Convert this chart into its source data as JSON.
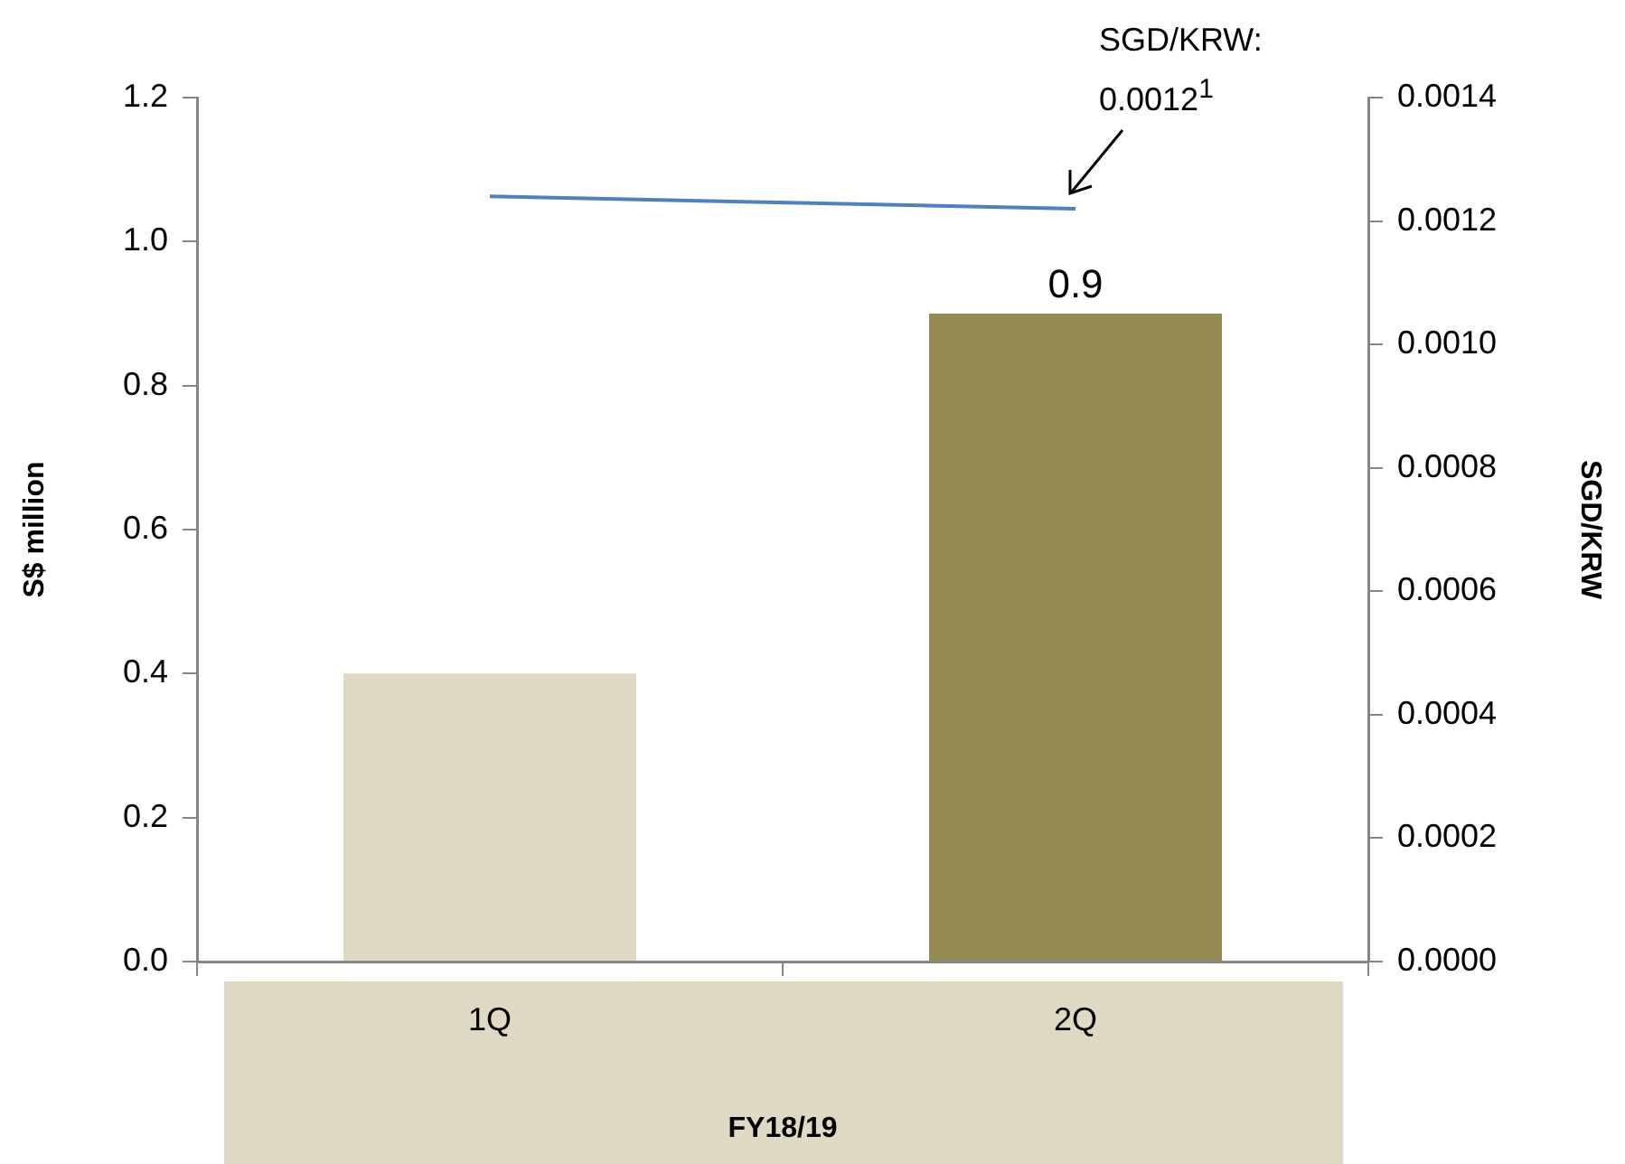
{
  "chart_data": {
    "type": "bar",
    "categories": [
      "1Q",
      "2Q"
    ],
    "xlabel": "FY18/19",
    "ylabel": "S$ million",
    "y2label": "SGD/KRW",
    "series": [
      {
        "colors": [
          "#ddd9c3",
          "#948a54"
        ],
        "values": [
          0.4,
          0.9
        ],
        "value_labels": [
          null,
          "0.9"
        ]
      },
      {
        "type": "line",
        "axis": "y2",
        "color": "#4f81bd",
        "values": [
          0.00124,
          0.00122
        ]
      }
    ],
    "ylim": [
      0,
      1.2
    ],
    "yticks": [
      {
        "value": 0,
        "label": "0.0"
      },
      0.2,
      0.4,
      0.6,
      0.8,
      {
        "value": 1,
        "label": "1.0"
      },
      1.2
    ],
    "y2lim": [
      0,
      0.0014
    ],
    "y2ticks": [
      {
        "value": 0,
        "label": "0.0000"
      },
      0.0002,
      0.0004,
      0.0006,
      0.0008,
      {
        "value": 0.001,
        "label": "0.0010"
      },
      0.0012,
      0.0014
    ],
    "annotations": [
      "SGD/KRW: 0.0012$^{1}$"
    ],
    "grid": false,
    "legend": false,
    "marker": "none",
    "line_style": "solid"
  }
}
